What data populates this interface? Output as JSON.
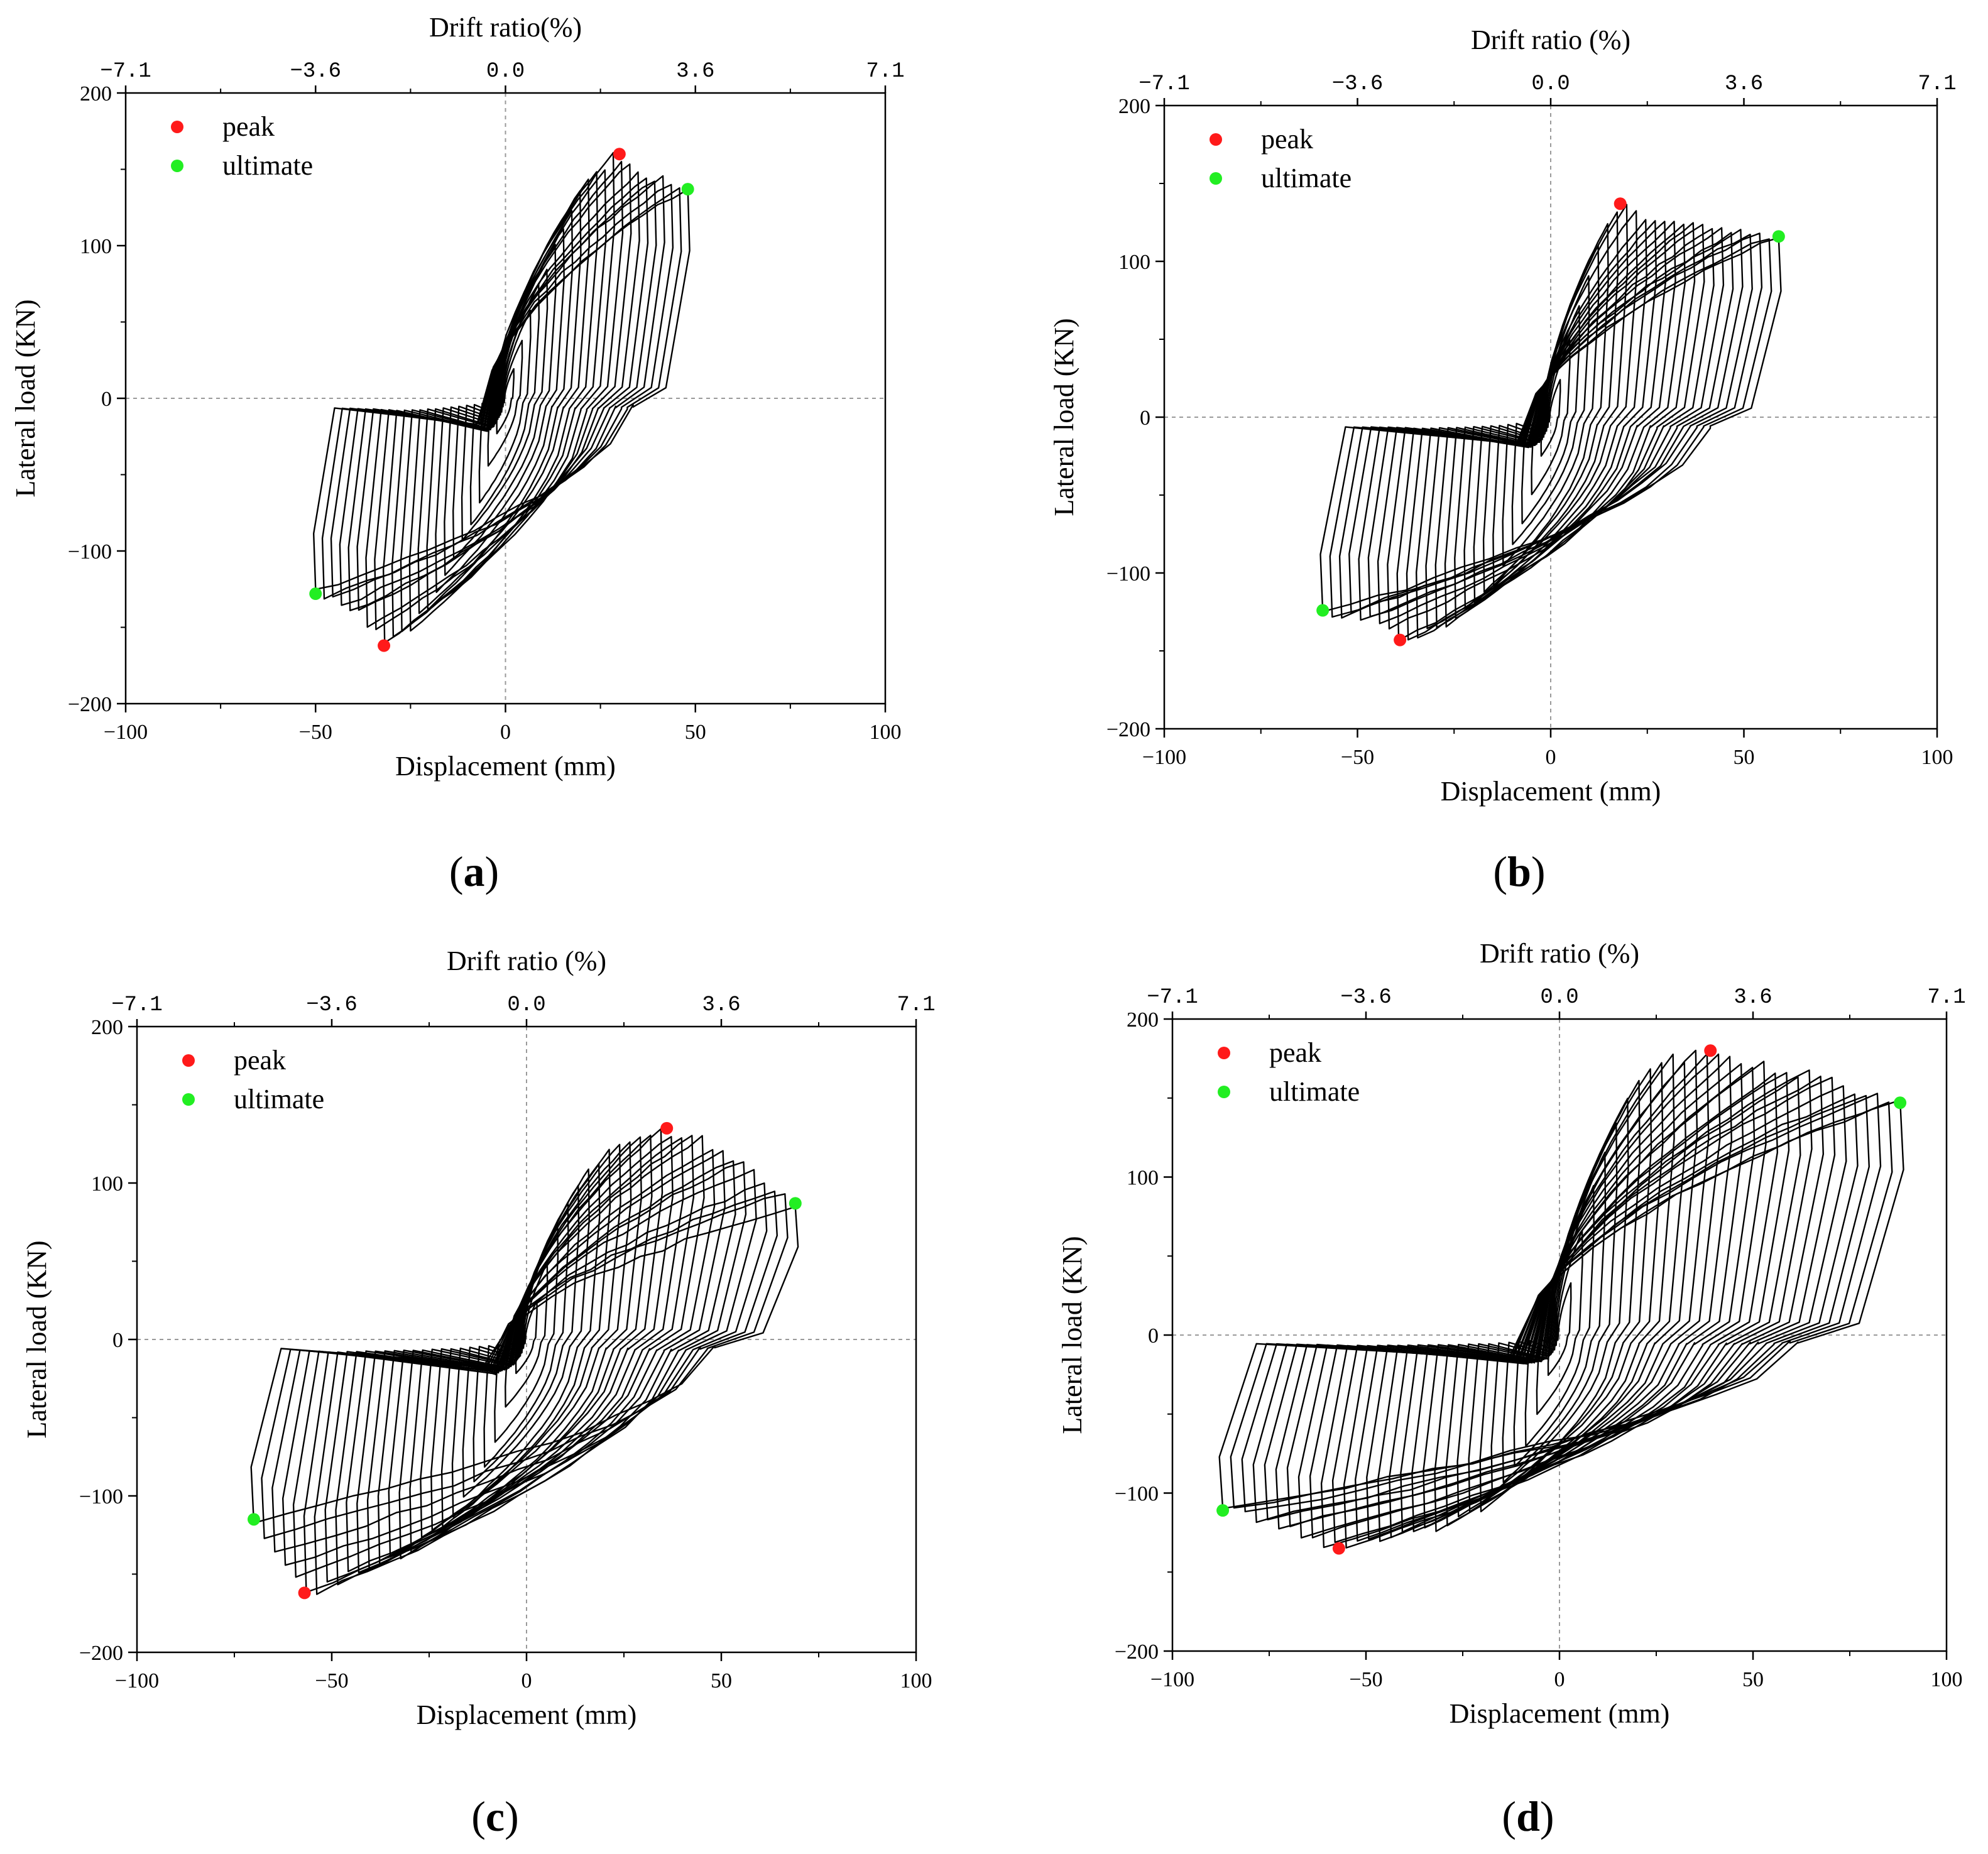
{
  "figure": {
    "description_axis_note": "Hysteresis curves of four specimens: lateral load vs displacement",
    "colors": {
      "peak": "#ff1a1a",
      "ultimate": "#22ee22",
      "curve": "#000000",
      "ref_line": "#9a9a9a"
    }
  },
  "chart_data": [
    {
      "type": "line",
      "panel": "a",
      "panel_label": {
        "open": "(",
        "letter": "a",
        "close": ")"
      },
      "xlabel": "Displacement (mm)",
      "ylabel": "Lateral load (KN)",
      "top_xlabel": "Drift ratio(%)",
      "xlim": [
        -100,
        100
      ],
      "ylim": [
        -200,
        200
      ],
      "x_ticks": [
        "−100",
        "−50",
        "0",
        "50",
        "100"
      ],
      "y_ticks": [
        "200",
        "100",
        "0",
        "−100",
        "−200"
      ],
      "top_ticks": [
        "−7.1",
        "−3.6",
        "0.0",
        "3.6",
        "7.1"
      ],
      "legend": {
        "peak": "peak",
        "ultimate": "ultimate"
      },
      "peak_points": [
        [
          30,
          160
        ],
        [
          -32,
          -162
        ]
      ],
      "ultimate_points": [
        [
          48,
          137
        ],
        [
          -50,
          -128
        ]
      ],
      "envelope": {
        "pos": [
          [
            8,
            70
          ],
          [
            15,
            110
          ],
          [
            20,
            140
          ],
          [
            25,
            152
          ],
          [
            30,
            160
          ],
          [
            35,
            150
          ],
          [
            40,
            146
          ],
          [
            45,
            142
          ],
          [
            48,
            137
          ]
        ],
        "neg": [
          [
            -8,
            -80
          ],
          [
            -15,
            -112
          ],
          [
            -20,
            -140
          ],
          [
            -26,
            -152
          ],
          [
            -32,
            -162
          ],
          [
            -37,
            -145
          ],
          [
            -42,
            -137
          ],
          [
            -46,
            -132
          ],
          [
            -50,
            -128
          ]
        ]
      },
      "cycles": 22
    },
    {
      "type": "line",
      "panel": "b",
      "panel_label": {
        "open": "(",
        "letter": "b",
        "close": ")"
      },
      "xlabel": "Displacement (mm)",
      "ylabel": "Lateral load (KN)",
      "top_xlabel": "Drift ratio (%)",
      "xlim": [
        -100,
        100
      ],
      "ylim": [
        -200,
        200
      ],
      "x_ticks": [
        "−100",
        "−50",
        "0",
        "50",
        "100"
      ],
      "y_ticks": [
        "200",
        "100",
        "0",
        "−100",
        "−200"
      ],
      "top_ticks": [
        "−7.1",
        "−3.6",
        "0.0",
        "3.6",
        "7.1"
      ],
      "legend": {
        "peak": "peak",
        "ultimate": "ultimate"
      },
      "peak_points": [
        [
          18,
          137
        ],
        [
          -39,
          -143
        ]
      ],
      "ultimate_points": [
        [
          59,
          116
        ],
        [
          -59,
          -124
        ]
      ],
      "envelope": {
        "pos": [
          [
            6,
            60
          ],
          [
            12,
            110
          ],
          [
            18,
            137
          ],
          [
            25,
            128
          ],
          [
            32,
            124
          ],
          [
            40,
            122
          ],
          [
            47,
            120
          ],
          [
            53,
            118
          ],
          [
            59,
            116
          ]
        ],
        "neg": [
          [
            -6,
            -60
          ],
          [
            -15,
            -110
          ],
          [
            -25,
            -130
          ],
          [
            -32,
            -138
          ],
          [
            -39,
            -143
          ],
          [
            -44,
            -135
          ],
          [
            -49,
            -130
          ],
          [
            -54,
            -127
          ],
          [
            -59,
            -124
          ]
        ]
      },
      "cycles": 24
    },
    {
      "type": "line",
      "panel": "c",
      "panel_label": {
        "open": "(",
        "letter": "c",
        "close": ")"
      },
      "xlabel": "Displacement (mm)",
      "ylabel": "Lateral load (KN)",
      "top_xlabel": "Drift ratio (%)",
      "xlim": [
        -100,
        100
      ],
      "ylim": [
        -200,
        200
      ],
      "x_ticks": [
        "−100",
        "−50",
        "0",
        "50",
        "100"
      ],
      "y_ticks": [
        "200",
        "100",
        "0",
        "−100",
        "−200"
      ],
      "top_ticks": [
        "−7.1",
        "−3.6",
        "0.0",
        "3.6",
        "7.1"
      ],
      "legend": {
        "peak": "peak",
        "ultimate": "ultimate"
      },
      "peak_points": [
        [
          36,
          135
        ],
        [
          -57,
          -162
        ]
      ],
      "ultimate_points": [
        [
          69,
          87
        ],
        [
          -70,
          -115
        ]
      ],
      "envelope": {
        "pos": [
          [
            8,
            75
          ],
          [
            15,
            105
          ],
          [
            22,
            125
          ],
          [
            30,
            132
          ],
          [
            36,
            135
          ],
          [
            45,
            128
          ],
          [
            55,
            115
          ],
          [
            62,
            100
          ],
          [
            69,
            87
          ]
        ],
        "neg": [
          [
            -10,
            -80
          ],
          [
            -20,
            -115
          ],
          [
            -30,
            -135
          ],
          [
            -45,
            -152
          ],
          [
            -57,
            -162
          ],
          [
            -61,
            -150
          ],
          [
            -65,
            -135
          ],
          [
            -68,
            -122
          ],
          [
            -70,
            -115
          ]
        ]
      },
      "cycles": 26
    },
    {
      "type": "line",
      "panel": "d",
      "panel_label": {
        "open": "(",
        "letter": "d",
        "close": ")"
      },
      "xlabel": "Displacement (mm)",
      "ylabel": "Lateral load (KN)",
      "top_xlabel": "Drift ratio (%)",
      "xlim": [
        -100,
        100
      ],
      "ylim": [
        -200,
        200
      ],
      "x_ticks": [
        "−100",
        "−50",
        "0",
        "50",
        "100"
      ],
      "y_ticks": [
        "200",
        "100",
        "0",
        "−100",
        "−200"
      ],
      "top_ticks": [
        "−7.1",
        "−3.6",
        "0.0",
        "3.6",
        "7.1"
      ],
      "legend": {
        "peak": "peak",
        "ultimate": "ultimate"
      },
      "peak_points": [
        [
          39,
          180
        ],
        [
          -57,
          -135
        ]
      ],
      "ultimate_points": [
        [
          88,
          147
        ],
        [
          -87,
          -111
        ]
      ],
      "envelope": {
        "pos": [
          [
            8,
            90
          ],
          [
            15,
            140
          ],
          [
            22,
            165
          ],
          [
            30,
            175
          ],
          [
            39,
            180
          ],
          [
            52,
            172
          ],
          [
            65,
            165
          ],
          [
            78,
            155
          ],
          [
            88,
            147
          ]
        ],
        "neg": [
          [
            -8,
            -70
          ],
          [
            -20,
            -110
          ],
          [
            -35,
            -125
          ],
          [
            -46,
            -131
          ],
          [
            -57,
            -135
          ],
          [
            -65,
            -128
          ],
          [
            -73,
            -120
          ],
          [
            -80,
            -115
          ],
          [
            -87,
            -111
          ]
        ]
      },
      "cycles": 30
    }
  ]
}
